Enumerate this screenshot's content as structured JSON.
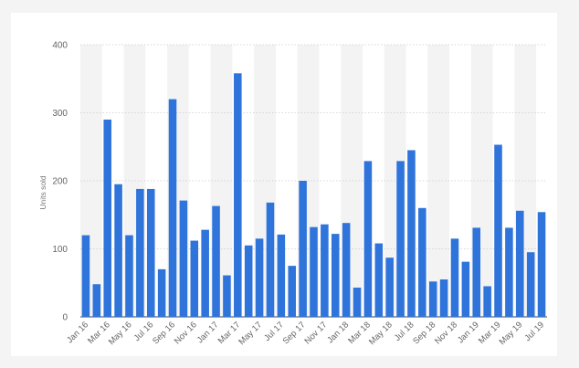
{
  "chart_data": {
    "type": "bar",
    "ylabel": "Units sold",
    "xlabel": "",
    "ylim": [
      0,
      400
    ],
    "yticks": [
      0,
      100,
      200,
      300,
      400
    ],
    "grid": true,
    "bar_color": "#2f74db",
    "band_color": "#f3f3f3",
    "categories": [
      "Jan 16",
      "Feb 16",
      "Mar 16",
      "Apr 16",
      "May 16",
      "Jun 16",
      "Jul 16",
      "Aug 16",
      "Sep 16",
      "Oct 16",
      "Nov 16",
      "Dec 16",
      "Jan 17",
      "Feb 17",
      "Mar 17",
      "Apr 17",
      "May 17",
      "Jun 17",
      "Jul 17",
      "Aug 17",
      "Sep 17",
      "Oct 17",
      "Nov 17",
      "Dec 17",
      "Jan 18",
      "Feb 18",
      "Mar 18",
      "Apr 18",
      "May 18",
      "Jun 18",
      "Jul 18",
      "Aug 18",
      "Sep 18",
      "Oct 18",
      "Nov 18",
      "Dec 18",
      "Jan 19",
      "Feb 19",
      "Mar 19",
      "Apr 19",
      "May 19",
      "Jun 19",
      "Jul 19"
    ],
    "tick_labels": [
      "Jan 16",
      "Mar 16",
      "May 16",
      "Jul 16",
      "Sep 16",
      "Nov 16",
      "Jan 17",
      "Mar 17",
      "May 17",
      "Jul 17",
      "Sep 17",
      "Nov 17",
      "Jan 18",
      "Mar 18",
      "May 18",
      "Jul 18",
      "Sep 18",
      "Nov 18",
      "Jan 19",
      "Mar 19",
      "May 19",
      "Jul 19"
    ],
    "values": [
      120,
      48,
      290,
      195,
      120,
      188,
      188,
      70,
      320,
      171,
      112,
      128,
      163,
      61,
      358,
      105,
      115,
      168,
      121,
      75,
      200,
      132,
      136,
      122,
      138,
      43,
      229,
      108,
      87,
      229,
      245,
      160,
      52,
      55,
      115,
      81,
      131,
      45,
      253,
      131,
      156,
      95,
      154
    ]
  }
}
